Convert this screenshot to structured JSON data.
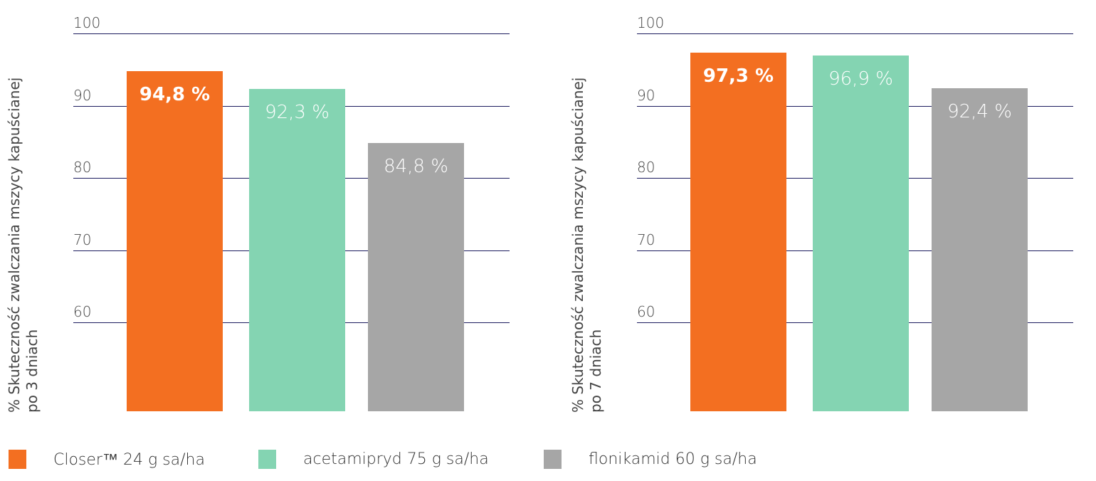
{
  "chart_data": [
    {
      "type": "bar",
      "ylabel": "% Skuteczność zwalczania mszycy kapuścianej po 3 dniach",
      "ylabel_lines": [
        "% Skuteczność zwalczania mszycy kapuścianej",
        "po 3 dniach"
      ],
      "yticks": [
        "100",
        "90",
        "80",
        "70",
        "60"
      ],
      "ytick_values": [
        100,
        90,
        80,
        70,
        60
      ],
      "ylim": [
        47.7,
        100
      ],
      "grid": true,
      "categories": [
        "Closer™ 24 g sa/ha",
        "acetamipryd 75 g sa/ha",
        "flonikamid 60 g sa/ha"
      ],
      "values": [
        94.8,
        92.3,
        84.8
      ],
      "labels": [
        "94,8 %",
        "92,3 %",
        "84,8 %"
      ]
    },
    {
      "type": "bar",
      "ylabel": "% Skuteczność zwalczania mszycy kapuścianej po 7 dniach",
      "ylabel_lines": [
        "% Skuteczność zwalczania mszycy kapuścianej",
        "po 7 dniach"
      ],
      "yticks": [
        "100",
        "90",
        "80",
        "70",
        "60"
      ],
      "ytick_values": [
        100,
        90,
        80,
        70,
        60
      ],
      "ylim": [
        47.7,
        100
      ],
      "grid": true,
      "categories": [
        "Closer™ 24 g sa/ha",
        "acetamipryd 75 g sa/ha",
        "flonikamid 60 g sa/ha"
      ],
      "values": [
        97.3,
        96.9,
        92.4
      ],
      "labels": [
        "97,3 %",
        "96,9 %",
        "92,4 %"
      ]
    }
  ],
  "legend": [
    {
      "label": "Closer™ 24 g  sa/ha",
      "color": "#F36F21"
    },
    {
      "label": "acetamipryd 75 g  sa/ha",
      "color": "#84D4B2"
    },
    {
      "label": "flonikamid 60 g  sa/ha",
      "color": "#A6A6A6"
    }
  ],
  "colors": [
    "#F36F21",
    "#84D4B2",
    "#A6A6A6"
  ]
}
